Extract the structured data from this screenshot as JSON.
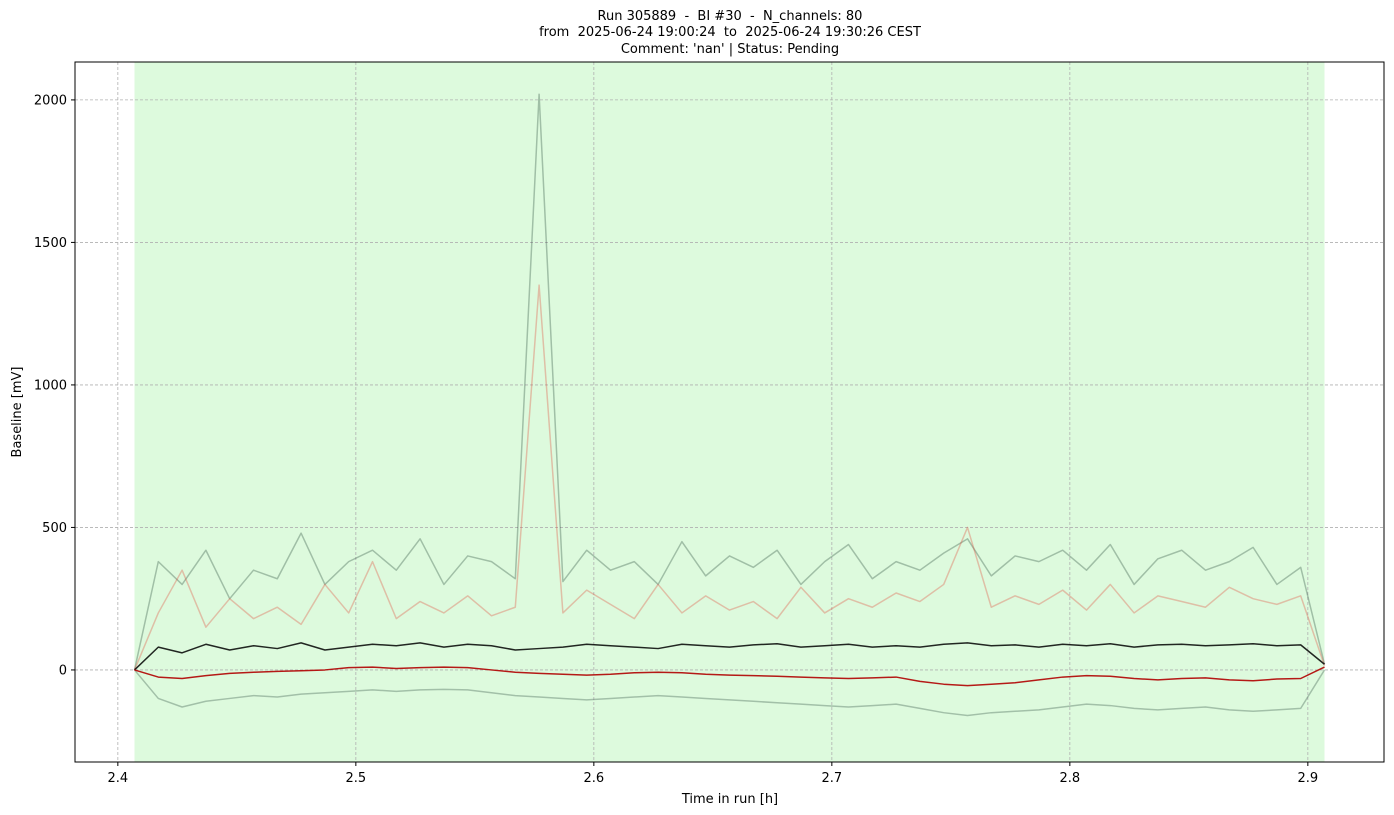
{
  "chart_data": {
    "type": "line",
    "title": [
      "Run 305889  -  BI #30  -  N_channels: 80",
      "from  2025-06-24 19:00:24  to  2025-06-24 19:30:26 CEST",
      "Comment: 'nan' | Status: Pending"
    ],
    "xlabel": "Time in run [h]",
    "ylabel": "Baseline [mV]",
    "xlim": [
      2.382,
      2.932
    ],
    "ylim": [
      -323,
      2133
    ],
    "xticks": [
      2.4,
      2.5,
      2.6,
      2.7,
      2.8,
      2.9
    ],
    "yticks": [
      0,
      500,
      1000,
      1500,
      2000
    ],
    "grid": true,
    "span": [
      2.407,
      2.907
    ],
    "span_color": "#90ee90",
    "x": [
      2.407,
      2.417,
      2.427,
      2.437,
      2.447,
      2.457,
      2.467,
      2.477,
      2.487,
      2.497,
      2.507,
      2.517,
      2.527,
      2.537,
      2.547,
      2.557,
      2.567,
      2.577,
      2.587,
      2.597,
      2.607,
      2.617,
      2.627,
      2.637,
      2.647,
      2.657,
      2.667,
      2.677,
      2.687,
      2.697,
      2.707,
      2.717,
      2.727,
      2.737,
      2.747,
      2.757,
      2.767,
      2.777,
      2.787,
      2.797,
      2.807,
      2.817,
      2.827,
      2.837,
      2.847,
      2.857,
      2.867,
      2.877,
      2.887,
      2.897,
      2.907
    ],
    "series": [
      {
        "color": "#2f4f3f",
        "alpha": 0.35,
        "values": [
          0,
          380,
          300,
          420,
          250,
          350,
          320,
          480,
          300,
          380,
          420,
          350,
          460,
          300,
          400,
          380,
          320,
          2020,
          310,
          420,
          350,
          380,
          300,
          450,
          330,
          400,
          360,
          420,
          300,
          380,
          440,
          320,
          380,
          350,
          410,
          460,
          330,
          400,
          380,
          420,
          350,
          440,
          300,
          390,
          420,
          350,
          380,
          430,
          300,
          360,
          20
        ]
      },
      {
        "color": "#e05040",
        "alpha": 0.35,
        "values": [
          0,
          200,
          350,
          150,
          250,
          180,
          220,
          160,
          300,
          200,
          380,
          180,
          240,
          200,
          260,
          190,
          220,
          1350,
          200,
          280,
          230,
          180,
          300,
          200,
          260,
          210,
          240,
          180,
          290,
          200,
          250,
          220,
          270,
          240,
          300,
          500,
          220,
          260,
          230,
          280,
          210,
          300,
          200,
          260,
          240,
          220,
          290,
          250,
          230,
          260,
          15
        ]
      },
      {
        "color": "#000000",
        "alpha": 0.85,
        "values": [
          0,
          80,
          60,
          90,
          70,
          85,
          75,
          95,
          70,
          80,
          90,
          85,
          95,
          80,
          90,
          85,
          70,
          75,
          80,
          90,
          85,
          80,
          75,
          90,
          85,
          80,
          88,
          92,
          80,
          85,
          90,
          80,
          85,
          80,
          90,
          95,
          85,
          88,
          80,
          90,
          85,
          92,
          80,
          88,
          90,
          85,
          88,
          92,
          85,
          88,
          20
        ]
      },
      {
        "color": "#4a6a5a",
        "alpha": 0.4,
        "values": [
          0,
          -100,
          -130,
          -110,
          -100,
          -90,
          -95,
          -85,
          -80,
          -75,
          -70,
          -75,
          -70,
          -68,
          -70,
          -80,
          -90,
          -95,
          -100,
          -105,
          -100,
          -95,
          -90,
          -95,
          -100,
          -105,
          -110,
          -115,
          -120,
          -125,
          -130,
          -125,
          -120,
          -135,
          -150,
          -160,
          -150,
          -145,
          -140,
          -130,
          -120,
          -125,
          -135,
          -140,
          -135,
          -130,
          -140,
          -145,
          -140,
          -135,
          0
        ]
      },
      {
        "color": "#b00000",
        "alpha": 0.9,
        "values": [
          0,
          -25,
          -30,
          -20,
          -12,
          -8,
          -5,
          -3,
          0,
          8,
          10,
          5,
          8,
          10,
          8,
          0,
          -8,
          -12,
          -15,
          -18,
          -15,
          -10,
          -8,
          -10,
          -15,
          -18,
          -20,
          -22,
          -25,
          -28,
          -30,
          -28,
          -25,
          -40,
          -50,
          -55,
          -50,
          -45,
          -35,
          -25,
          -20,
          -22,
          -30,
          -35,
          -30,
          -28,
          -35,
          -38,
          -32,
          -30,
          10
        ]
      }
    ]
  }
}
